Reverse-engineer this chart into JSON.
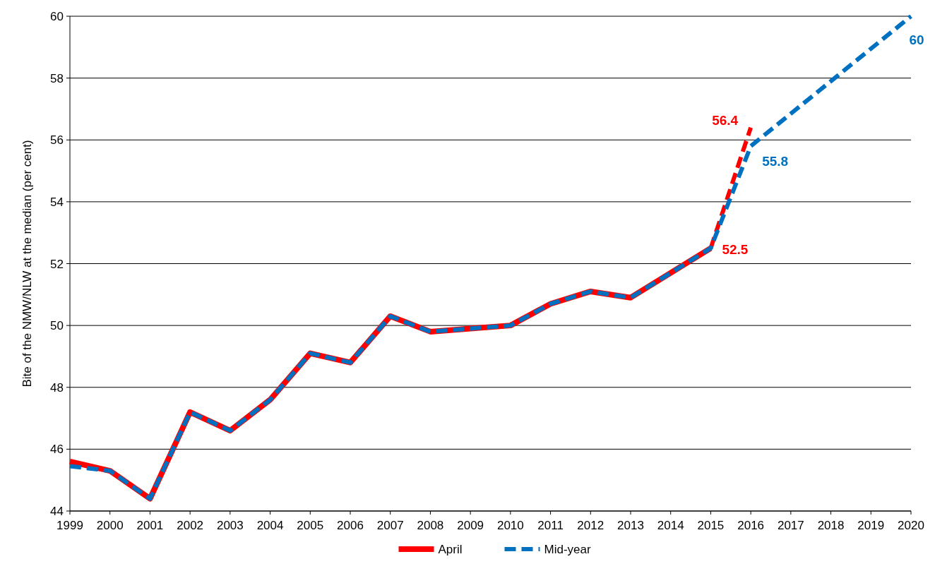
{
  "chart_data": {
    "type": "line",
    "ylabel": "Bite of the NMW/NLW at the median (per cent)",
    "xlim": [
      1999,
      2020
    ],
    "xticks": [
      1999,
      2000,
      2001,
      2002,
      2003,
      2004,
      2005,
      2006,
      2007,
      2008,
      2009,
      2010,
      2011,
      2012,
      2013,
      2014,
      2015,
      2016,
      2017,
      2018,
      2019,
      2020
    ],
    "ylim": [
      44,
      60
    ],
    "yticks": [
      44,
      46,
      48,
      50,
      52,
      54,
      56,
      58,
      60
    ],
    "grid": "y",
    "legend": "bottom",
    "marker": "none",
    "series": [
      {
        "name": "April",
        "color": "#ff0000",
        "line_style": "solid",
        "x": [
          1999,
          2000,
          2001,
          2002,
          2003,
          2004,
          2005,
          2006,
          2007,
          2008,
          2009,
          2010,
          2011,
          2012,
          2013,
          2014,
          2015
        ],
        "values": [
          45.6,
          45.3,
          44.4,
          47.2,
          46.6,
          47.6,
          49.1,
          48.8,
          50.3,
          49.8,
          49.9,
          50.0,
          50.7,
          51.1,
          50.9,
          51.7,
          52.5
        ],
        "value_labels": [
          null,
          null,
          null,
          null,
          null,
          null,
          null,
          null,
          null,
          null,
          null,
          null,
          null,
          null,
          null,
          null,
          "52.5"
        ]
      },
      {
        "color": "#ff0000",
        "line_style": "dashed",
        "x": [
          2015,
          2016
        ],
        "values": [
          52.5,
          56.4
        ],
        "value_labels": [
          null,
          "56.4"
        ]
      },
      {
        "name": "Mid-year",
        "color": "#0070c0",
        "line_style": "dashed",
        "x": [
          1999,
          2000,
          2001,
          2002,
          2003,
          2004,
          2005,
          2006,
          2007,
          2008,
          2009,
          2010,
          2011,
          2012,
          2013,
          2014,
          2015,
          2016,
          2020
        ],
        "values": [
          45.45,
          45.3,
          44.4,
          47.2,
          46.6,
          47.6,
          49.1,
          48.8,
          50.3,
          49.8,
          49.9,
          50.0,
          50.7,
          51.1,
          50.9,
          51.7,
          52.5,
          55.8,
          60
        ],
        "value_labels": [
          null,
          null,
          null,
          null,
          null,
          null,
          null,
          null,
          null,
          null,
          null,
          null,
          null,
          null,
          null,
          null,
          null,
          "55.8",
          "60"
        ]
      }
    ]
  }
}
